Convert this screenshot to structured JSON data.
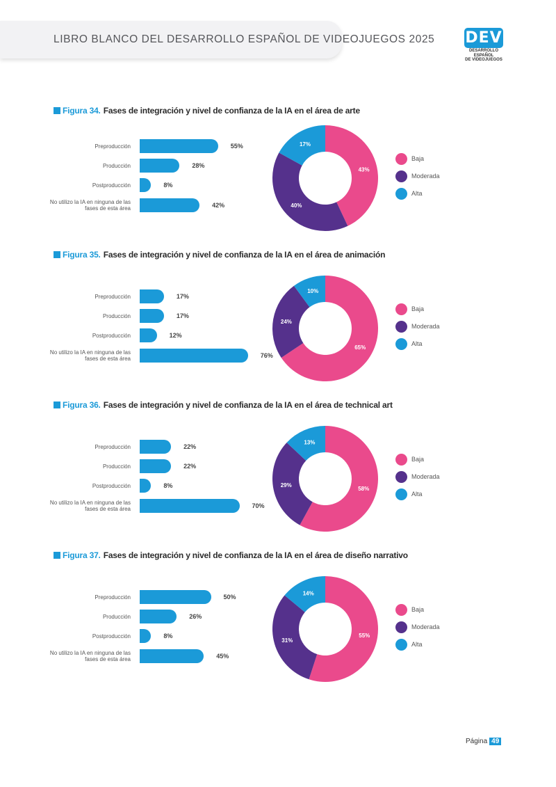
{
  "header": {
    "title": "LIBRO BLANCO DEL DESARROLLO ESPAÑOL DE VIDEOJUEGOS 2025",
    "logo_text": "DEV",
    "logo_sub_1": "DESARROLLO ESPAÑOL",
    "logo_sub_2": "DE VIDEOJUEGOS"
  },
  "colors": {
    "accent": "#1b9ad8",
    "baja": "#ea4a8c",
    "moderada": "#55318c",
    "alta": "#1b9ad8"
  },
  "figures": [
    {
      "number": "Figura 34.",
      "title": "Fases de integración y nivel de confianza de la IA en el área de arte"
    },
    {
      "number": "Figura 35.",
      "title": "Fases de integración y nivel de confianza de la IA en el área de animación"
    },
    {
      "number": "Figura 36.",
      "title": "Fases de integración y nivel de confianza de la IA en el área de technical art"
    },
    {
      "number": "Figura 37.",
      "title": "Fases de integración y nivel de confianza de la IA en el área de diseño narrativo"
    }
  ],
  "chart_data": [
    {
      "type": "bar",
      "categories": [
        "Preproducción",
        "Producción",
        "Postproducción",
        "No utilizo la IA en ninguna de las\nfases de esta área"
      ],
      "values": [
        55,
        28,
        8,
        42
      ],
      "value_labels": [
        "55%",
        "28%",
        "8%",
        "42%"
      ],
      "donut": {
        "type": "pie",
        "labels": [
          "Baja",
          "Moderada",
          "Alta"
        ],
        "values": [
          43,
          40,
          17
        ],
        "value_labels": [
          "43%",
          "40%",
          "17%"
        ]
      }
    },
    {
      "type": "bar",
      "categories": [
        "Preproducción",
        "Producción",
        "Postproducción",
        "No utilizo la IA en ninguna de las\nfases de esta área"
      ],
      "values": [
        17,
        17,
        12,
        76
      ],
      "value_labels": [
        "17%",
        "17%",
        "12%",
        "76%"
      ],
      "donut": {
        "type": "pie",
        "labels": [
          "Baja",
          "Moderada",
          "Alta"
        ],
        "values": [
          65,
          24,
          10
        ],
        "value_labels": [
          "65%",
          "24%",
          "10%"
        ]
      }
    },
    {
      "type": "bar",
      "categories": [
        "Preproducción",
        "Producción",
        "Postproducción",
        "No utilizo la IA en ninguna de las\nfases de esta área"
      ],
      "values": [
        22,
        22,
        8,
        70
      ],
      "value_labels": [
        "22%",
        "22%",
        "8%",
        "70%"
      ],
      "donut": {
        "type": "pie",
        "labels": [
          "Baja",
          "Moderada",
          "Alta"
        ],
        "values": [
          58,
          29,
          13
        ],
        "value_labels": [
          "58%",
          "29%",
          "13%"
        ]
      }
    },
    {
      "type": "bar",
      "categories": [
        "Preproducción",
        "Producción",
        "Postproducción",
        "No utilizo la IA en ninguna de las\nfases de esta área"
      ],
      "values": [
        50,
        26,
        8,
        45
      ],
      "value_labels": [
        "50%",
        "26%",
        "8%",
        "45%"
      ],
      "donut": {
        "type": "pie",
        "labels": [
          "Baja",
          "Moderada",
          "Alta"
        ],
        "values": [
          55,
          31,
          14
        ],
        "value_labels": [
          "55%",
          "31%",
          "14%"
        ]
      }
    }
  ],
  "legend": [
    "Baja",
    "Moderada",
    "Alta"
  ],
  "footer": {
    "label": "Página",
    "page": "49"
  }
}
